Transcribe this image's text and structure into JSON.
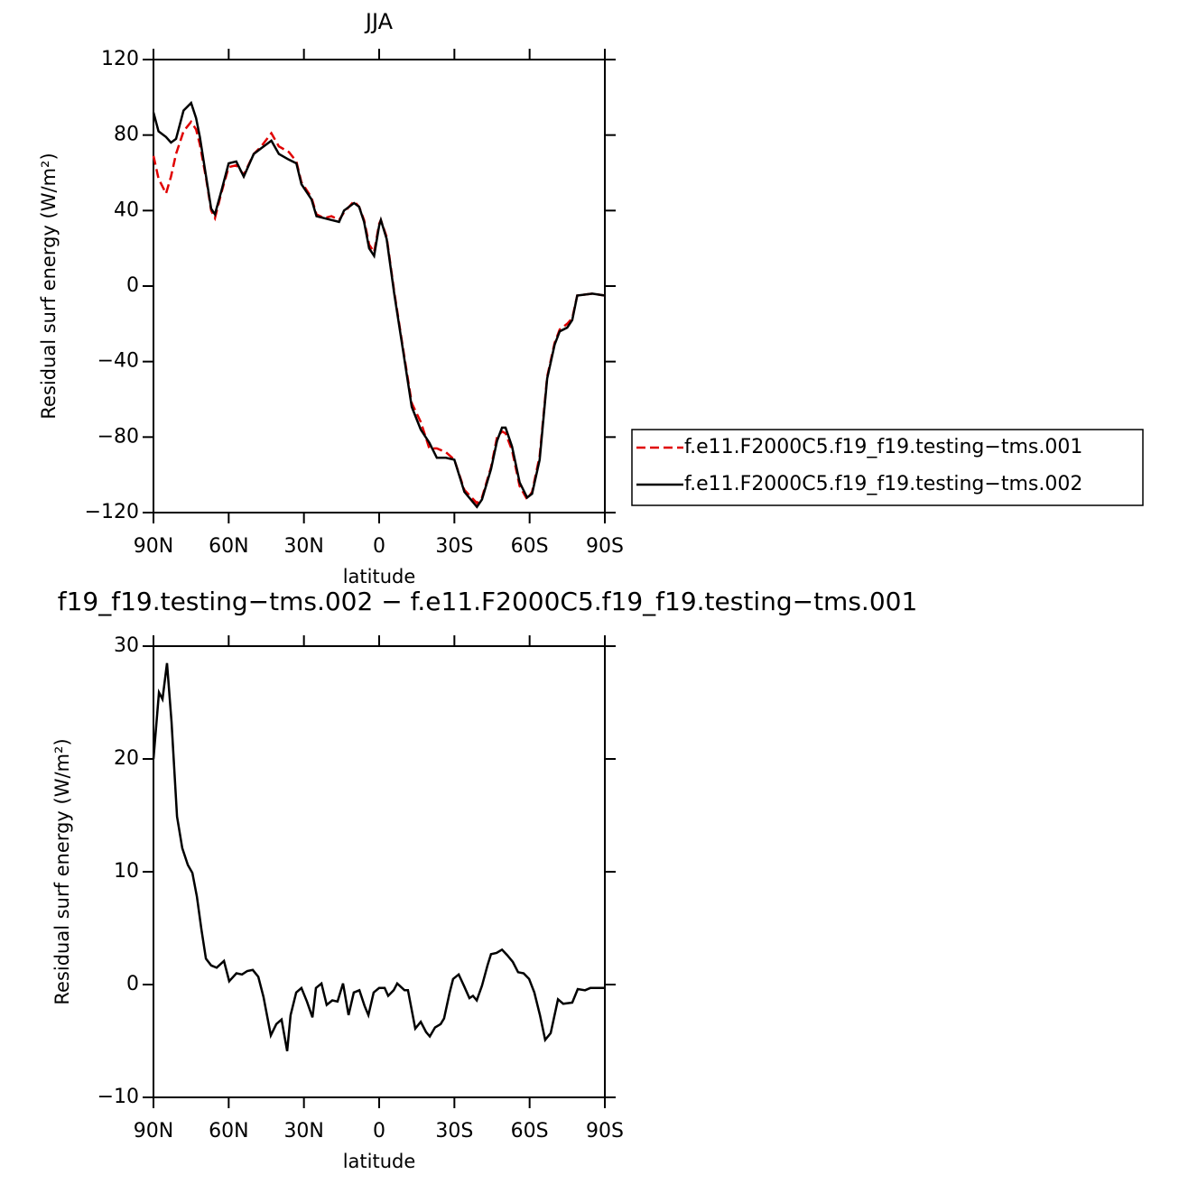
{
  "chart_data": [
    {
      "type": "line",
      "title": "JJA",
      "xlabel": "latitude",
      "ylabel": "Residual surf energy (W/m²)",
      "xlim": [
        90,
        -90
      ],
      "xticks": [
        {
          "value": 90,
          "label": "90N"
        },
        {
          "value": 60,
          "label": "60N"
        },
        {
          "value": 30,
          "label": "30N"
        },
        0,
        {
          "value": -30,
          "label": "30S"
        },
        {
          "value": -60,
          "label": "60S"
        },
        {
          "value": -90,
          "label": "90S"
        }
      ],
      "ylim": [
        -120,
        120
      ],
      "yticks": [
        {
          "value": -120,
          "label": "−120"
        },
        {
          "value": -80,
          "label": "−80"
        },
        {
          "value": -40,
          "label": "−40"
        },
        0,
        40,
        80,
        120
      ],
      "legend": "right",
      "x": [
        90,
        88,
        85,
        83,
        81,
        78,
        75,
        73,
        71.5,
        69,
        67,
        65.5,
        63,
        60,
        57,
        54,
        50,
        47,
        43,
        40,
        36,
        33,
        31,
        27,
        25,
        22,
        19,
        16,
        14,
        10,
        8,
        6,
        4,
        2,
        0,
        -0.7,
        -3,
        -6,
        -9.4,
        -13,
        -16.6,
        -20,
        -23,
        -26.6,
        -30,
        -34,
        -39,
        -41,
        -44.6,
        -47,
        -49,
        -50.4,
        -53,
        -56,
        -59,
        -61,
        -64,
        -67,
        -70,
        -72,
        -75,
        -77,
        -79,
        -85,
        -90
      ],
      "series": [
        {
          "name": "f.e11.F2000C5.f19_f19.testing−tms.001",
          "color": "#e00000",
          "dashed": true,
          "values": [
            69,
            57,
            49,
            58,
            70,
            82,
            87,
            83,
            75,
            57,
            40,
            36,
            49,
            63,
            64,
            59,
            70,
            74,
            81,
            74,
            71,
            66,
            55,
            47,
            38,
            36,
            37,
            35,
            39,
            45,
            42,
            35,
            22,
            18,
            33,
            35,
            26,
            -3,
            -32,
            -62,
            -72,
            -86,
            -86,
            -88,
            -92,
            -108,
            -115,
            -112,
            -96,
            -80,
            -77,
            -78,
            -87,
            -106,
            -113,
            -109,
            -90,
            -48,
            -30,
            -23,
            -20,
            -17,
            -5,
            -4,
            -5
          ]
        },
        {
          "name": "f.e11.F2000C5.f19_f19.testing−tms.002",
          "color": "#000000",
          "dashed": false,
          "values": [
            92,
            82,
            79,
            76,
            78,
            93,
            97,
            89,
            79,
            58,
            41,
            38,
            50,
            65,
            66,
            58,
            70,
            73,
            77,
            70,
            67,
            65,
            54,
            46,
            37,
            36,
            35,
            34,
            40,
            44,
            42,
            34,
            20,
            16,
            32,
            35,
            25,
            -4,
            -33,
            -64,
            -76,
            -83,
            -91,
            -91,
            -92,
            -109,
            -117,
            -113,
            -97,
            -82,
            -75,
            -75,
            -85,
            -104,
            -112,
            -110,
            -92,
            -49,
            -31,
            -24,
            -22,
            -18,
            -5,
            -4,
            -5
          ]
        }
      ]
    },
    {
      "type": "line",
      "title": "f19_f19.testing−tms.002 − f.e11.F2000C5.f19_f19.testing−tms.001",
      "xlabel": "latitude",
      "ylabel": "Residual surf energy (W/m²)",
      "xlim": [
        90,
        -90
      ],
      "xticks": [
        {
          "value": 90,
          "label": "90N"
        },
        {
          "value": 60,
          "label": "60N"
        },
        {
          "value": 30,
          "label": "30N"
        },
        0,
        {
          "value": -30,
          "label": "30S"
        },
        {
          "value": -60,
          "label": "60S"
        },
        {
          "value": -90,
          "label": "90S"
        }
      ],
      "ylim": [
        -10,
        30
      ],
      "yticks": [
        {
          "value": -10,
          "label": "−10"
        },
        0,
        10,
        20,
        30
      ],
      "x": [
        90,
        87.8,
        86.4,
        84.6,
        82.8,
        80.6,
        78.5,
        76.3,
        74.5,
        72.7,
        70.9,
        69.1,
        67,
        64.8,
        61.9,
        59.8,
        56.9,
        54.7,
        52.6,
        50.4,
        48.2,
        46.1,
        43.2,
        41,
        38.9,
        36.7,
        35.3,
        33.1,
        31,
        28.8,
        26.6,
        25.2,
        23,
        20.9,
        18.7,
        16.6,
        14.4,
        12.2,
        10.1,
        7.9,
        5.8,
        4.3,
        2.2,
        0,
        -2.2,
        -3.6,
        -5.8,
        -7.2,
        -10.1,
        -11.5,
        -14.4,
        -16.6,
        -18.7,
        -20.2,
        -22.3,
        -24.5,
        -25.9,
        -28.1,
        -29.5,
        -31.7,
        -33.8,
        -36,
        -37.4,
        -38.9,
        -41,
        -43.2,
        -44.6,
        -46.8,
        -49,
        -51.1,
        -53.3,
        -55.4,
        -57.6,
        -59.8,
        -61.9,
        -64.1,
        -66.2,
        -68.4,
        -71.3,
        -73.4,
        -77,
        -79.2,
        -82.1,
        -84.2,
        -88.6,
        -90
      ],
      "series": [
        {
          "color": "#000000",
          "dashed": false,
          "values": [
            20,
            25.9,
            25.3,
            28.5,
            23.3,
            14.9,
            12.1,
            10.6,
            9.9,
            7.8,
            4.9,
            2.3,
            1.7,
            1.5,
            2.1,
            0.3,
            1,
            0.9,
            1.2,
            1.3,
            0.7,
            -1.1,
            -4.5,
            -3.5,
            -3.1,
            -5.9,
            -2.7,
            -0.7,
            -0.3,
            -1.5,
            -2.9,
            -0.3,
            0.1,
            -1.8,
            -1.4,
            -1.5,
            0.1,
            -2.7,
            -0.7,
            -0.5,
            -1.9,
            -2.7,
            -0.7,
            -0.3,
            -0.3,
            -1,
            -0.5,
            0.1,
            -0.5,
            -0.5,
            -3.9,
            -3.3,
            -4.2,
            -4.6,
            -3.8,
            -3.5,
            -3,
            -0.7,
            0.5,
            0.9,
            -0.1,
            -1.2,
            -1,
            -1.4,
            -0.1,
            1.7,
            2.7,
            2.8,
            3.1,
            2.6,
            2,
            1.1,
            1,
            0.5,
            -0.7,
            -2.7,
            -4.9,
            -4.3,
            -1.3,
            -1.7,
            -1.6,
            -0.4,
            -0.5,
            -0.3,
            -0.3,
            -0.3
          ]
        }
      ]
    }
  ]
}
